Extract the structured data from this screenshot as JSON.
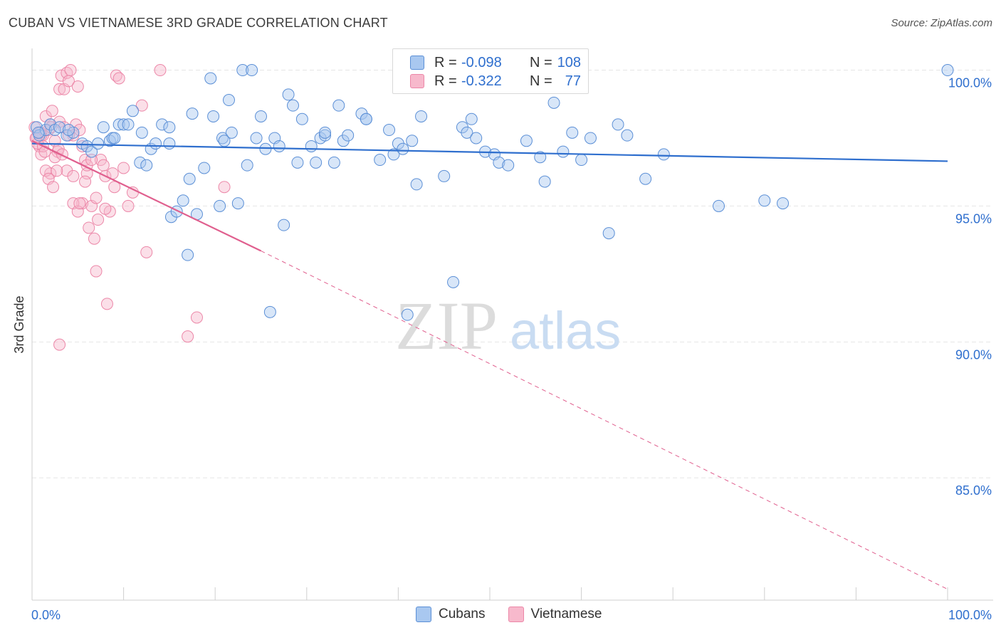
{
  "title": "CUBAN VS VIETNAMESE 3RD GRADE CORRELATION CHART",
  "source": "Source: ZipAtlas.com",
  "watermark": {
    "zip": "ZIP",
    "atlas": "atlas"
  },
  "colors": {
    "cubans_fill": "#a9c8f0",
    "cubans_stroke": "#5b8fd6",
    "cubans_line": "#2f6fce",
    "viet_fill": "#f7b9cc",
    "viet_stroke": "#ec87a8",
    "viet_line": "#e05f8e",
    "axis_text": "#2f6fce",
    "grid": "#e6e6e6"
  },
  "legend": {
    "rows": [
      {
        "r_label": "R =",
        "r_value": "-0.098",
        "n_label": "N =",
        "n_value": "108"
      },
      {
        "r_label": "R =",
        "r_value": "-0.322",
        "n_label": "N =",
        "n_value": "77"
      }
    ]
  },
  "bottom_legend": {
    "cubans": "Cubans",
    "vietnamese": "Vietnamese"
  },
  "chart_data": {
    "type": "scatter",
    "title": "CUBAN VS VIETNAMESE 3RD GRADE CORRELATION CHART",
    "xlabel": "",
    "ylabel": "3rd Grade",
    "xlim": [
      0,
      100
    ],
    "ylim": [
      80.5,
      100.8
    ],
    "x_tick_labels": {
      "left": "0.0%",
      "right": "100.0%"
    },
    "y_ticks": [
      100,
      95,
      90,
      85
    ],
    "y_tick_labels": [
      "100.0%",
      "95.0%",
      "90.0%",
      "85.0%"
    ],
    "series": [
      {
        "name": "Cubans",
        "trend": {
          "x0": 0,
          "y0": 97.3,
          "x1": 100,
          "y1": 96.65,
          "dashed_after": null
        },
        "points": [
          [
            0.5,
            97.9
          ],
          [
            0.8,
            97.6
          ],
          [
            1.5,
            97.8
          ],
          [
            2,
            98.0
          ],
          [
            2.5,
            97.8
          ],
          [
            3,
            97.9
          ],
          [
            3.8,
            97.6
          ],
          [
            4.5,
            97.7
          ],
          [
            5.5,
            97.3
          ],
          [
            6,
            97.2
          ],
          [
            6.5,
            97.0
          ],
          [
            7.2,
            97.3
          ],
          [
            7.8,
            97.9
          ],
          [
            8.5,
            97.4
          ],
          [
            8.8,
            97.5
          ],
          [
            9.5,
            98.0
          ],
          [
            10,
            98.0
          ],
          [
            10.5,
            98.0
          ],
          [
            11,
            98.5
          ],
          [
            11.8,
            96.6
          ],
          [
            12,
            97.7
          ],
          [
            12.5,
            96.5
          ],
          [
            13,
            97.1
          ],
          [
            13.5,
            97.3
          ],
          [
            14.2,
            98.0
          ],
          [
            15,
            97.3
          ],
          [
            15.2,
            94.6
          ],
          [
            15.8,
            94.8
          ],
          [
            16.5,
            95.2
          ],
          [
            17,
            93.2
          ],
          [
            17.2,
            96.0
          ],
          [
            17.5,
            98.4
          ],
          [
            18,
            94.7
          ],
          [
            18.8,
            96.4
          ],
          [
            19.5,
            99.7
          ],
          [
            19.8,
            98.3
          ],
          [
            20.5,
            95.0
          ],
          [
            20.8,
            97.5
          ],
          [
            21.5,
            98.9
          ],
          [
            21.8,
            97.7
          ],
          [
            22.5,
            95.1
          ],
          [
            23,
            100.0
          ],
          [
            23.5,
            96.5
          ],
          [
            24,
            100.0
          ],
          [
            24.5,
            97.5
          ],
          [
            25,
            98.3
          ],
          [
            25.5,
            97.1
          ],
          [
            26,
            91.1
          ],
          [
            26.5,
            97.5
          ],
          [
            27,
            97.2
          ],
          [
            27.5,
            94.3
          ],
          [
            28,
            99.1
          ],
          [
            28.5,
            98.7
          ],
          [
            29,
            96.6
          ],
          [
            29.5,
            98.2
          ],
          [
            30.5,
            97.2
          ],
          [
            31,
            96.6
          ],
          [
            31.5,
            97.5
          ],
          [
            32,
            97.6
          ],
          [
            33,
            96.6
          ],
          [
            33.5,
            98.7
          ],
          [
            34,
            97.4
          ],
          [
            34.5,
            97.6
          ],
          [
            36,
            98.4
          ],
          [
            36.5,
            98.2
          ],
          [
            38,
            96.7
          ],
          [
            39,
            97.8
          ],
          [
            39.5,
            96.9
          ],
          [
            40,
            97.3
          ],
          [
            40.5,
            97.1
          ],
          [
            41,
            91.0
          ],
          [
            41.5,
            97.4
          ],
          [
            42,
            95.8
          ],
          [
            42.5,
            98.3
          ],
          [
            45,
            96.1
          ],
          [
            46,
            92.2
          ],
          [
            47,
            97.9
          ],
          [
            47.5,
            97.7
          ],
          [
            48,
            98.2
          ],
          [
            48.5,
            97.5
          ],
          [
            49.5,
            97.0
          ],
          [
            50.5,
            96.9
          ],
          [
            51,
            96.6
          ],
          [
            52,
            96.5
          ],
          [
            54,
            97.4
          ],
          [
            55.5,
            96.8
          ],
          [
            56,
            95.9
          ],
          [
            57,
            98.8
          ],
          [
            58,
            97.0
          ],
          [
            59,
            97.7
          ],
          [
            60,
            96.7
          ],
          [
            61,
            97.5
          ],
          [
            63,
            94.0
          ],
          [
            64,
            98.0
          ],
          [
            65,
            97.6
          ],
          [
            67,
            96.0
          ],
          [
            69,
            96.9
          ],
          [
            75,
            95.0
          ],
          [
            80,
            95.2
          ],
          [
            82,
            95.1
          ],
          [
            100,
            100.0
          ],
          [
            36.5,
            98.2
          ],
          [
            32,
            97.7
          ],
          [
            21,
            97.4
          ],
          [
            15,
            97.9
          ],
          [
            9,
            97.5
          ],
          [
            4,
            97.8
          ],
          [
            0.7,
            97.7
          ]
        ]
      },
      {
        "name": "Vietnamese",
        "trend": {
          "x0": 0,
          "y0": 97.4,
          "x1": 25,
          "y1": 93.35,
          "dashed_to": {
            "x": 100,
            "y": 80.9
          }
        },
        "points": [
          [
            0.3,
            97.9
          ],
          [
            0.5,
            97.5
          ],
          [
            0.8,
            97.2
          ],
          [
            1,
            96.9
          ],
          [
            1.2,
            97.6
          ],
          [
            1.5,
            98.3
          ],
          [
            1.8,
            97.8
          ],
          [
            2,
            96.2
          ],
          [
            2.2,
            98.5
          ],
          [
            2.5,
            97.4
          ],
          [
            2.8,
            97.0
          ],
          [
            3,
            99.3
          ],
          [
            3.2,
            99.8
          ],
          [
            3.5,
            99.3
          ],
          [
            3.8,
            99.9
          ],
          [
            4,
            99.6
          ],
          [
            4.2,
            100.0
          ],
          [
            4.5,
            97.6
          ],
          [
            4.8,
            98.0
          ],
          [
            5,
            99.4
          ],
          [
            5.2,
            97.8
          ],
          [
            5.5,
            95.1
          ],
          [
            5.8,
            96.7
          ],
          [
            6,
            96.2
          ],
          [
            6.2,
            94.2
          ],
          [
            6.5,
            95.0
          ],
          [
            6.8,
            93.8
          ],
          [
            7,
            92.6
          ],
          [
            7.2,
            94.5
          ],
          [
            7.5,
            96.7
          ],
          [
            7.8,
            96.5
          ],
          [
            8,
            96.1
          ],
          [
            8.2,
            91.4
          ],
          [
            8.5,
            94.8
          ],
          [
            8.8,
            96.2
          ],
          [
            9,
            95.7
          ],
          [
            9.2,
            99.8
          ],
          [
            9.5,
            99.7
          ],
          [
            10,
            96.4
          ],
          [
            10.5,
            95.0
          ],
          [
            11,
            95.5
          ],
          [
            12,
            98.7
          ],
          [
            12.5,
            93.3
          ],
          [
            14,
            100.0
          ],
          [
            17,
            90.2
          ],
          [
            18,
            90.9
          ],
          [
            21,
            95.7
          ],
          [
            3,
            89.9
          ],
          [
            4.5,
            95.1
          ],
          [
            5,
            94.8
          ],
          [
            2.5,
            96.8
          ],
          [
            1.5,
            96.3
          ],
          [
            1,
            97.6
          ],
          [
            0.6,
            97.3
          ],
          [
            2,
            98.0
          ],
          [
            3,
            98.1
          ],
          [
            3.5,
            97.9
          ],
          [
            4,
            97.6
          ],
          [
            5.5,
            97.2
          ],
          [
            6,
            96.5
          ],
          [
            1.8,
            96.0
          ],
          [
            2.3,
            95.7
          ],
          [
            1.2,
            97.2
          ],
          [
            0.9,
            97.7
          ],
          [
            3.8,
            96.3
          ],
          [
            4.5,
            96.1
          ],
          [
            2.7,
            96.3
          ],
          [
            5.8,
            95.9
          ],
          [
            6.5,
            96.7
          ],
          [
            7,
            95.3
          ],
          [
            8,
            94.9
          ],
          [
            1.4,
            97.0
          ],
          [
            2.1,
            97.9
          ],
          [
            0.4,
            97.5
          ],
          [
            2.9,
            97.1
          ],
          [
            3.3,
            96.9
          ],
          [
            5.2,
            95.1
          ]
        ]
      }
    ]
  }
}
